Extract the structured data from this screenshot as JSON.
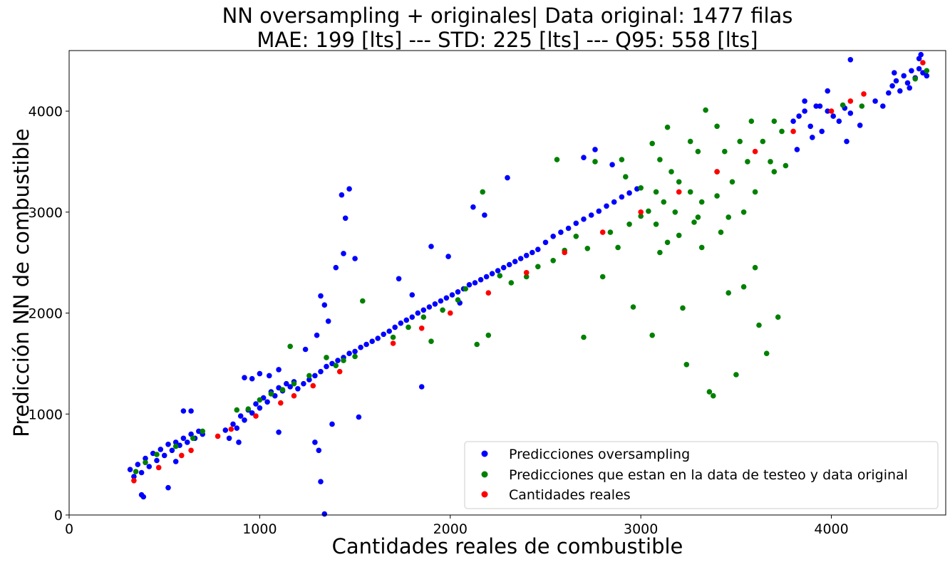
{
  "chart_data": {
    "type": "scatter",
    "title_line1": "NN oversampling + originales| Data original: 1477 filas",
    "title_line2": "MAE: 199 [lts] --- STD: 225 [lts] --- Q95: 558 [lts]",
    "xlabel": "Cantidades reales de combustible",
    "ylabel": "Predicción NN de combustible",
    "xlim": [
      0,
      4600
    ],
    "ylim": [
      0,
      4600
    ],
    "xticks": [
      0,
      1000,
      2000,
      3000,
      4000
    ],
    "yticks": [
      0,
      1000,
      2000,
      3000,
      4000
    ],
    "grid": false,
    "legend_position": "lower-right",
    "series": [
      {
        "name": "Predicciones oversampling",
        "color": "#0000ff",
        "points": [
          [
            320,
            450
          ],
          [
            340,
            380
          ],
          [
            360,
            500
          ],
          [
            380,
            420
          ],
          [
            400,
            560
          ],
          [
            420,
            480
          ],
          [
            440,
            610
          ],
          [
            460,
            540
          ],
          [
            480,
            650
          ],
          [
            500,
            590
          ],
          [
            520,
            700
          ],
          [
            540,
            640
          ],
          [
            560,
            720
          ],
          [
            580,
            690
          ],
          [
            600,
            760
          ],
          [
            620,
            720
          ],
          [
            640,
            800
          ],
          [
            660,
            760
          ],
          [
            680,
            830
          ],
          [
            700,
            800
          ],
          [
            380,
            200
          ],
          [
            390,
            180
          ],
          [
            520,
            270
          ],
          [
            560,
            530
          ],
          [
            600,
            1030
          ],
          [
            640,
            1030
          ],
          [
            820,
            840
          ],
          [
            840,
            760
          ],
          [
            860,
            900
          ],
          [
            880,
            860
          ],
          [
            900,
            980
          ],
          [
            920,
            940
          ],
          [
            940,
            1040
          ],
          [
            960,
            1010
          ],
          [
            980,
            1100
          ],
          [
            1000,
            1060
          ],
          [
            1020,
            1160
          ],
          [
            1040,
            1120
          ],
          [
            1060,
            1220
          ],
          [
            1080,
            1180
          ],
          [
            1100,
            1260
          ],
          [
            1120,
            1230
          ],
          [
            1140,
            1300
          ],
          [
            1160,
            1270
          ],
          [
            1180,
            1320
          ],
          [
            920,
            1360
          ],
          [
            960,
            1350
          ],
          [
            1000,
            1400
          ],
          [
            1050,
            1380
          ],
          [
            1100,
            1440
          ],
          [
            890,
            720
          ],
          [
            1100,
            820
          ],
          [
            1200,
            1250
          ],
          [
            1230,
            1300
          ],
          [
            1260,
            1340
          ],
          [
            1290,
            1380
          ],
          [
            1320,
            1420
          ],
          [
            1350,
            1470
          ],
          [
            1380,
            1500
          ],
          [
            1410,
            1530
          ],
          [
            1440,
            1560
          ],
          [
            1470,
            1600
          ],
          [
            1500,
            1620
          ],
          [
            1530,
            1660
          ],
          [
            1560,
            1690
          ],
          [
            1590,
            1720
          ],
          [
            1620,
            1750
          ],
          [
            1650,
            1790
          ],
          [
            1320,
            2170
          ],
          [
            1340,
            2080
          ],
          [
            1360,
            1920
          ],
          [
            1400,
            2450
          ],
          [
            1430,
            3170
          ],
          [
            1450,
            2940
          ],
          [
            1470,
            3230
          ],
          [
            1440,
            2590
          ],
          [
            1500,
            2540
          ],
          [
            1290,
            720
          ],
          [
            1310,
            640
          ],
          [
            1320,
            330
          ],
          [
            1340,
            10
          ],
          [
            1380,
            900
          ],
          [
            1520,
            970
          ],
          [
            1240,
            1640
          ],
          [
            1300,
            1780
          ],
          [
            1680,
            1820
          ],
          [
            1710,
            1860
          ],
          [
            1740,
            1900
          ],
          [
            1770,
            1930
          ],
          [
            1800,
            1960
          ],
          [
            1830,
            2000
          ],
          [
            1860,
            2030
          ],
          [
            1890,
            2060
          ],
          [
            1920,
            2090
          ],
          [
            1950,
            2120
          ],
          [
            1980,
            2150
          ],
          [
            2010,
            2180
          ],
          [
            2040,
            2210
          ],
          [
            2070,
            2240
          ],
          [
            2100,
            2280
          ],
          [
            2130,
            2300
          ],
          [
            2160,
            2330
          ],
          [
            2190,
            2360
          ],
          [
            2220,
            2390
          ],
          [
            2250,
            2420
          ],
          [
            2280,
            2450
          ],
          [
            2310,
            2480
          ],
          [
            2340,
            2510
          ],
          [
            2370,
            2540
          ],
          [
            2400,
            2570
          ],
          [
            2430,
            2600
          ],
          [
            2460,
            2630
          ],
          [
            1730,
            2340
          ],
          [
            1800,
            2180
          ],
          [
            1900,
            2660
          ],
          [
            1990,
            2560
          ],
          [
            2050,
            2100
          ],
          [
            2120,
            3050
          ],
          [
            2180,
            2970
          ],
          [
            2300,
            3340
          ],
          [
            1850,
            1270
          ],
          [
            2500,
            2700
          ],
          [
            2540,
            2760
          ],
          [
            2580,
            2800
          ],
          [
            2620,
            2840
          ],
          [
            2660,
            2890
          ],
          [
            2700,
            2930
          ],
          [
            2740,
            2970
          ],
          [
            2780,
            3010
          ],
          [
            2820,
            3060
          ],
          [
            2860,
            3100
          ],
          [
            2900,
            3150
          ],
          [
            2940,
            3190
          ],
          [
            2980,
            3230
          ],
          [
            2700,
            3540
          ],
          [
            2760,
            3620
          ],
          [
            2850,
            3470
          ],
          [
            3800,
            3900
          ],
          [
            3830,
            3950
          ],
          [
            3860,
            4000
          ],
          [
            3890,
            3850
          ],
          [
            3920,
            4050
          ],
          [
            3950,
            3800
          ],
          [
            3980,
            4000
          ],
          [
            4010,
            3950
          ],
          [
            4040,
            3900
          ],
          [
            4070,
            4030
          ],
          [
            4100,
            3980
          ],
          [
            3860,
            4100
          ],
          [
            3900,
            3740
          ],
          [
            3980,
            4200
          ],
          [
            3820,
            3620
          ],
          [
            4080,
            3700
          ],
          [
            4150,
            3860
          ],
          [
            3940,
            4050
          ],
          [
            4320,
            4250
          ],
          [
            4340,
            4300
          ],
          [
            4360,
            4200
          ],
          [
            4380,
            4350
          ],
          [
            4400,
            4280
          ],
          [
            4420,
            4400
          ],
          [
            4440,
            4330
          ],
          [
            4460,
            4420
          ],
          [
            4480,
            4380
          ],
          [
            4300,
            4180
          ],
          [
            4330,
            4380
          ],
          [
            4460,
            4520
          ],
          [
            4470,
            4560
          ],
          [
            4230,
            4100
          ],
          [
            4270,
            4050
          ],
          [
            4500,
            4350
          ],
          [
            4410,
            4230
          ],
          [
            4100,
            4510
          ]
        ]
      },
      {
        "name": "Predicciones que estan en la data de testeo y data original",
        "color": "#008000",
        "points": [
          [
            350,
            430
          ],
          [
            400,
            520
          ],
          [
            460,
            600
          ],
          [
            560,
            680
          ],
          [
            650,
            760
          ],
          [
            700,
            830
          ],
          [
            880,
            1040
          ],
          [
            940,
            1050
          ],
          [
            1000,
            1140
          ],
          [
            1060,
            1200
          ],
          [
            1120,
            1240
          ],
          [
            1160,
            1670
          ],
          [
            1180,
            1300
          ],
          [
            1260,
            1380
          ],
          [
            1350,
            1560
          ],
          [
            1400,
            1480
          ],
          [
            1440,
            1530
          ],
          [
            1500,
            1570
          ],
          [
            1540,
            2120
          ],
          [
            1700,
            1760
          ],
          [
            1780,
            1860
          ],
          [
            1860,
            1960
          ],
          [
            1900,
            1720
          ],
          [
            1960,
            2030
          ],
          [
            2040,
            2130
          ],
          [
            2080,
            2240
          ],
          [
            2140,
            1690
          ],
          [
            2170,
            3200
          ],
          [
            2200,
            1780
          ],
          [
            2260,
            2370
          ],
          [
            2320,
            2300
          ],
          [
            2400,
            2360
          ],
          [
            2460,
            2460
          ],
          [
            2540,
            2520
          ],
          [
            2560,
            3520
          ],
          [
            2600,
            2620
          ],
          [
            2660,
            2760
          ],
          [
            2700,
            1760
          ],
          [
            2720,
            2640
          ],
          [
            2760,
            3500
          ],
          [
            2800,
            2360
          ],
          [
            2840,
            2800
          ],
          [
            2880,
            2650
          ],
          [
            2940,
            2880
          ],
          [
            2960,
            2060
          ],
          [
            3000,
            2960
          ],
          [
            3040,
            3010
          ],
          [
            3060,
            1780
          ],
          [
            3080,
            3200
          ],
          [
            3100,
            2600
          ],
          [
            3120,
            3100
          ],
          [
            3140,
            2700
          ],
          [
            3160,
            3400
          ],
          [
            3180,
            3000
          ],
          [
            3200,
            3300
          ],
          [
            3220,
            2050
          ],
          [
            3240,
            1490
          ],
          [
            3260,
            3200
          ],
          [
            3280,
            2900
          ],
          [
            3300,
            3600
          ],
          [
            3320,
            3100
          ],
          [
            3340,
            4010
          ],
          [
            3360,
            1220
          ],
          [
            3380,
            1180
          ],
          [
            3400,
            3400
          ],
          [
            3420,
            2800
          ],
          [
            3440,
            3600
          ],
          [
            3460,
            2200
          ],
          [
            3480,
            3300
          ],
          [
            3500,
            1390
          ],
          [
            3520,
            3700
          ],
          [
            3540,
            2260
          ],
          [
            3560,
            3500
          ],
          [
            3580,
            3900
          ],
          [
            3600,
            3200
          ],
          [
            3620,
            1880
          ],
          [
            3640,
            3700
          ],
          [
            3660,
            1600
          ],
          [
            3680,
            3500
          ],
          [
            3700,
            3900
          ],
          [
            3720,
            1960
          ],
          [
            3740,
            3800
          ],
          [
            3260,
            3700
          ],
          [
            3320,
            2650
          ],
          [
            3400,
            3850
          ],
          [
            3460,
            2950
          ],
          [
            3540,
            3000
          ],
          [
            3600,
            2450
          ],
          [
            3200,
            2770
          ],
          [
            3140,
            3840
          ],
          [
            3060,
            3680
          ],
          [
            3000,
            3240
          ],
          [
            2920,
            3350
          ],
          [
            2900,
            3520
          ],
          [
            3100,
            3520
          ],
          [
            3400,
            3160
          ],
          [
            3300,
            2950
          ],
          [
            3700,
            3400
          ],
          [
            3760,
            3460
          ],
          [
            3080,
            2880
          ],
          [
            4060,
            4060
          ],
          [
            4160,
            4050
          ],
          [
            4500,
            4400
          ],
          [
            4440,
            4320
          ]
        ]
      },
      {
        "name": "Cantidades reales",
        "color": "#ff0000",
        "points": [
          [
            340,
            340
          ],
          [
            470,
            470
          ],
          [
            590,
            590
          ],
          [
            640,
            640
          ],
          [
            780,
            780
          ],
          [
            850,
            850
          ],
          [
            980,
            980
          ],
          [
            1110,
            1110
          ],
          [
            1180,
            1180
          ],
          [
            1280,
            1280
          ],
          [
            1420,
            1420
          ],
          [
            1700,
            1700
          ],
          [
            1850,
            1850
          ],
          [
            2000,
            2000
          ],
          [
            2200,
            2200
          ],
          [
            2400,
            2400
          ],
          [
            2600,
            2600
          ],
          [
            2800,
            2800
          ],
          [
            3000,
            3000
          ],
          [
            3200,
            3200
          ],
          [
            3400,
            3400
          ],
          [
            3600,
            3600
          ],
          [
            3800,
            3800
          ],
          [
            4000,
            4000
          ],
          [
            4100,
            4100
          ],
          [
            4170,
            4170
          ],
          [
            4480,
            4480
          ]
        ]
      }
    ]
  }
}
